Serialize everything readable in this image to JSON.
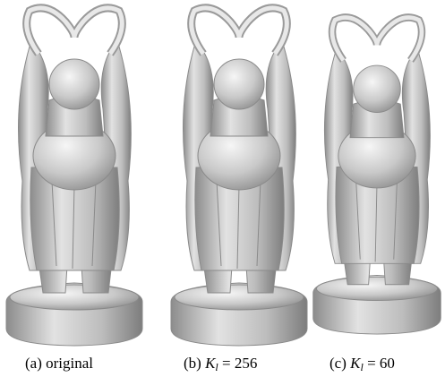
{
  "captions": [
    {
      "label": "(a)",
      "text": "original"
    },
    {
      "label": "(b)",
      "symbol": "K",
      "subscript": "l",
      "equation": "= 256"
    },
    {
      "label": "(c)",
      "symbol": "K",
      "subscript": "l",
      "equation": "= 60"
    }
  ]
}
